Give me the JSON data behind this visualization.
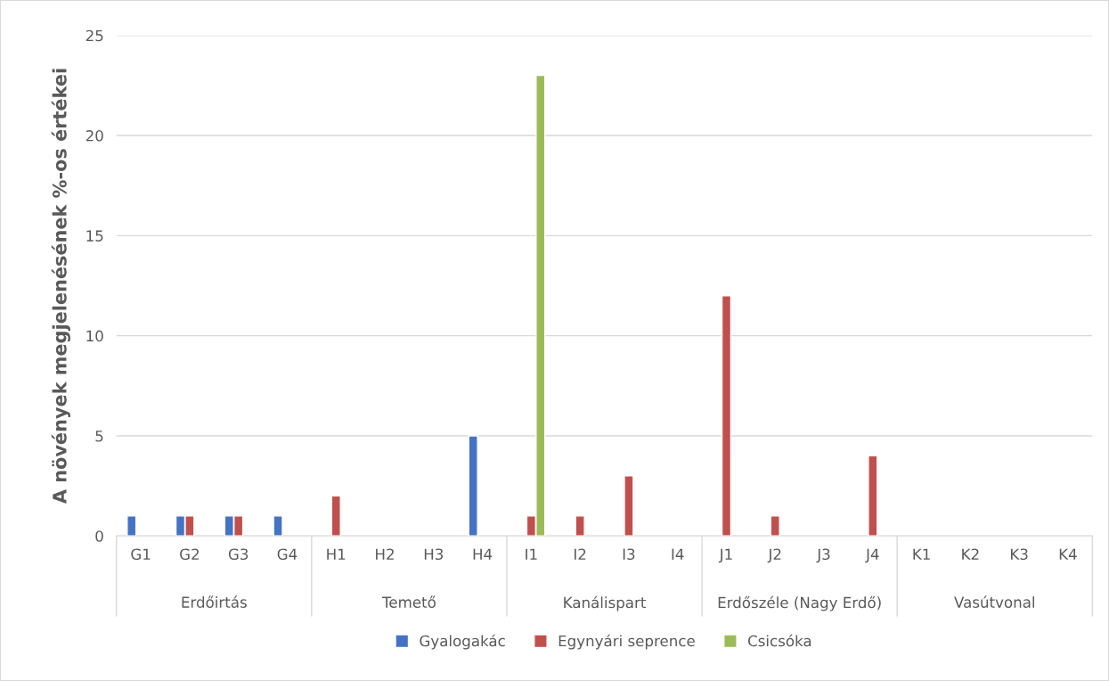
{
  "chart_data": {
    "type": "bar",
    "ylabel": "A növények megjelenésének %-os értékei",
    "categories": [
      "G1",
      "G2",
      "G3",
      "G4",
      "H1",
      "H2",
      "H3",
      "H4",
      "I1",
      "I2",
      "I3",
      "I4",
      "J1",
      "J2",
      "J3",
      "J4",
      "K1",
      "K2",
      "K3",
      "K4"
    ],
    "series": [
      {
        "name": "Gyalogakác",
        "color": "#4472c4",
        "values": [
          1,
          1,
          1,
          1,
          null,
          null,
          null,
          5,
          null,
          null,
          null,
          null,
          null,
          null,
          null,
          null,
          null,
          null,
          null,
          null
        ]
      },
      {
        "name": "Egynyári seprence",
        "color": "#c0504d",
        "values": [
          null,
          1,
          1,
          null,
          2,
          null,
          null,
          null,
          1,
          1,
          3,
          null,
          12,
          1,
          null,
          4,
          null,
          null,
          null,
          null
        ]
      },
      {
        "name": "Csicsóka",
        "color": "#9bbb59",
        "values": [
          null,
          null,
          null,
          null,
          null,
          null,
          null,
          null,
          23,
          null,
          null,
          null,
          null,
          null,
          null,
          null,
          null,
          null,
          null,
          null
        ]
      }
    ],
    "annotations": [
      "Erdőirtás",
      "Temető",
      "Kanálispart",
      "Erdőszéle (Nagy Erdő)",
      "Vasútvonal"
    ],
    "ylim": [
      0,
      25
    ],
    "yticks": [
      0,
      5,
      10,
      15,
      20,
      25
    ],
    "grid": "y",
    "legend": "bottom"
  }
}
